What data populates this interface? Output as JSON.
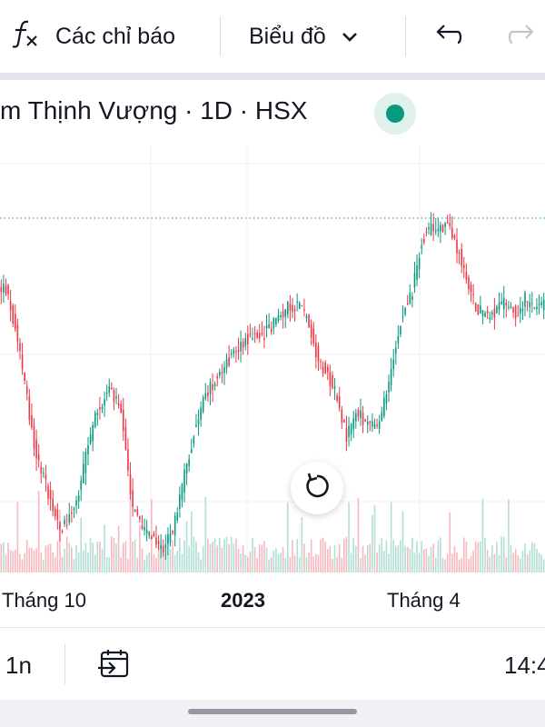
{
  "toolbar": {
    "indicators_label": "Các chỉ báo",
    "chart_type_label": "Biểu đồ",
    "icons": [
      "function-icon",
      "chevron-down-icon",
      "undo-icon",
      "redo-icon"
    ]
  },
  "symbol": {
    "title": "m Thịnh Vượng · 1D · HSX",
    "status_color": "#089981"
  },
  "chart_data": {
    "type": "candlestick",
    "title": "",
    "x_tick_labels": [
      "Tháng 10",
      "2023",
      "Tháng 4"
    ],
    "colors": {
      "up": "#089981",
      "down": "#f23645",
      "volume_up": "#b2dfd6",
      "volume_down": "#f7b9bf",
      "last_price_line": "#089981"
    },
    "grid": true,
    "volume_shown": true,
    "trend_profile": [
      [
        0,
        0.8
      ],
      [
        3,
        0.8
      ],
      [
        8,
        0.66
      ],
      [
        13,
        0.45
      ],
      [
        16,
        0.33
      ],
      [
        20,
        0.25
      ],
      [
        26,
        0.12
      ],
      [
        30,
        0.16
      ],
      [
        34,
        0.22
      ],
      [
        38,
        0.36
      ],
      [
        42,
        0.46
      ],
      [
        47,
        0.52
      ],
      [
        52,
        0.45
      ],
      [
        57,
        0.18
      ],
      [
        62,
        0.12
      ],
      [
        66,
        0.09
      ],
      [
        70,
        0.07
      ],
      [
        74,
        0.12
      ],
      [
        78,
        0.24
      ],
      [
        83,
        0.4
      ],
      [
        88,
        0.5
      ],
      [
        94,
        0.57
      ],
      [
        100,
        0.62
      ],
      [
        105,
        0.66
      ],
      [
        112,
        0.67
      ],
      [
        118,
        0.71
      ],
      [
        123,
        0.75
      ],
      [
        128,
        0.76
      ],
      [
        132,
        0.7
      ],
      [
        136,
        0.6
      ],
      [
        140,
        0.56
      ],
      [
        144,
        0.5
      ],
      [
        148,
        0.38
      ],
      [
        152,
        0.45
      ],
      [
        157,
        0.42
      ],
      [
        161,
        0.4
      ],
      [
        165,
        0.5
      ],
      [
        168,
        0.62
      ],
      [
        172,
        0.74
      ],
      [
        176,
        0.79
      ],
      [
        180,
        0.94
      ],
      [
        184,
        0.97
      ],
      [
        188,
        0.98
      ],
      [
        192,
        0.97
      ],
      [
        196,
        0.9
      ],
      [
        200,
        0.8
      ],
      [
        204,
        0.74
      ],
      [
        208,
        0.73
      ],
      [
        212,
        0.74
      ],
      [
        216,
        0.76
      ],
      [
        220,
        0.73
      ],
      [
        224,
        0.77
      ],
      [
        228,
        0.74
      ],
      [
        231,
        0.75
      ]
    ]
  },
  "bottom_bar": {
    "interval_label": "1n",
    "time_label": "14:4",
    "icons": [
      "date-range-icon"
    ]
  }
}
